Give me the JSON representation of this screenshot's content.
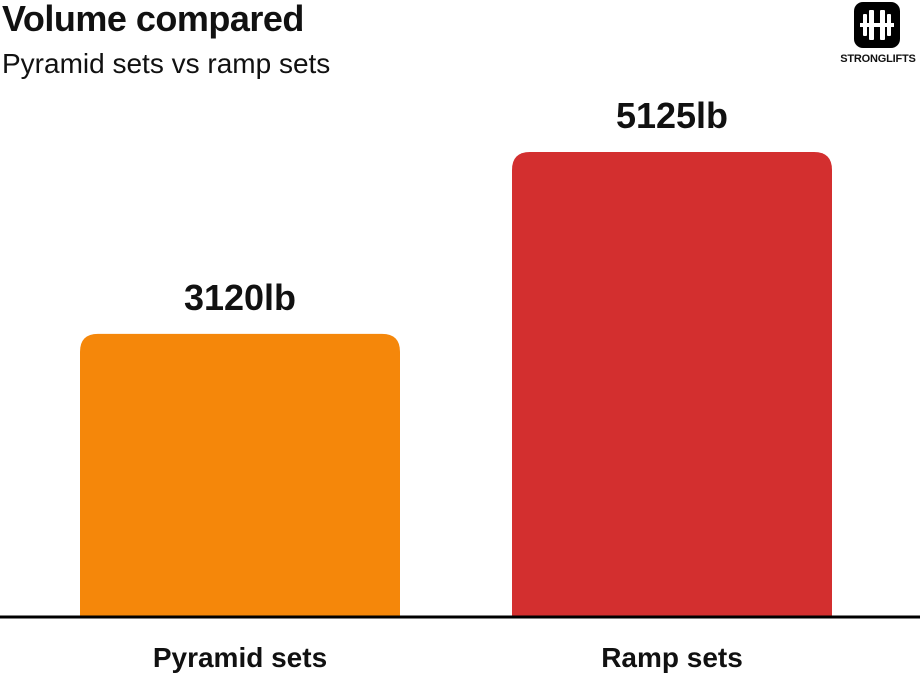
{
  "header": {
    "title": "Volume compared",
    "subtitle": "Pyramid sets vs ramp sets"
  },
  "logo": {
    "text": "STRONGLIFTS",
    "icon": "barbell-icon"
  },
  "chart_data": {
    "type": "bar",
    "title": "Volume compared",
    "subtitle": "Pyramid sets vs ramp sets",
    "categories": [
      "Pyramid sets",
      "Ramp sets"
    ],
    "values": [
      3120,
      5125
    ],
    "value_labels": [
      "3120lb",
      "5125lb"
    ],
    "colors": [
      "#f5870a",
      "#d32f2f"
    ],
    "unit": "lb",
    "xlabel": "",
    "ylabel": "",
    "grid": false,
    "legend": "none"
  }
}
